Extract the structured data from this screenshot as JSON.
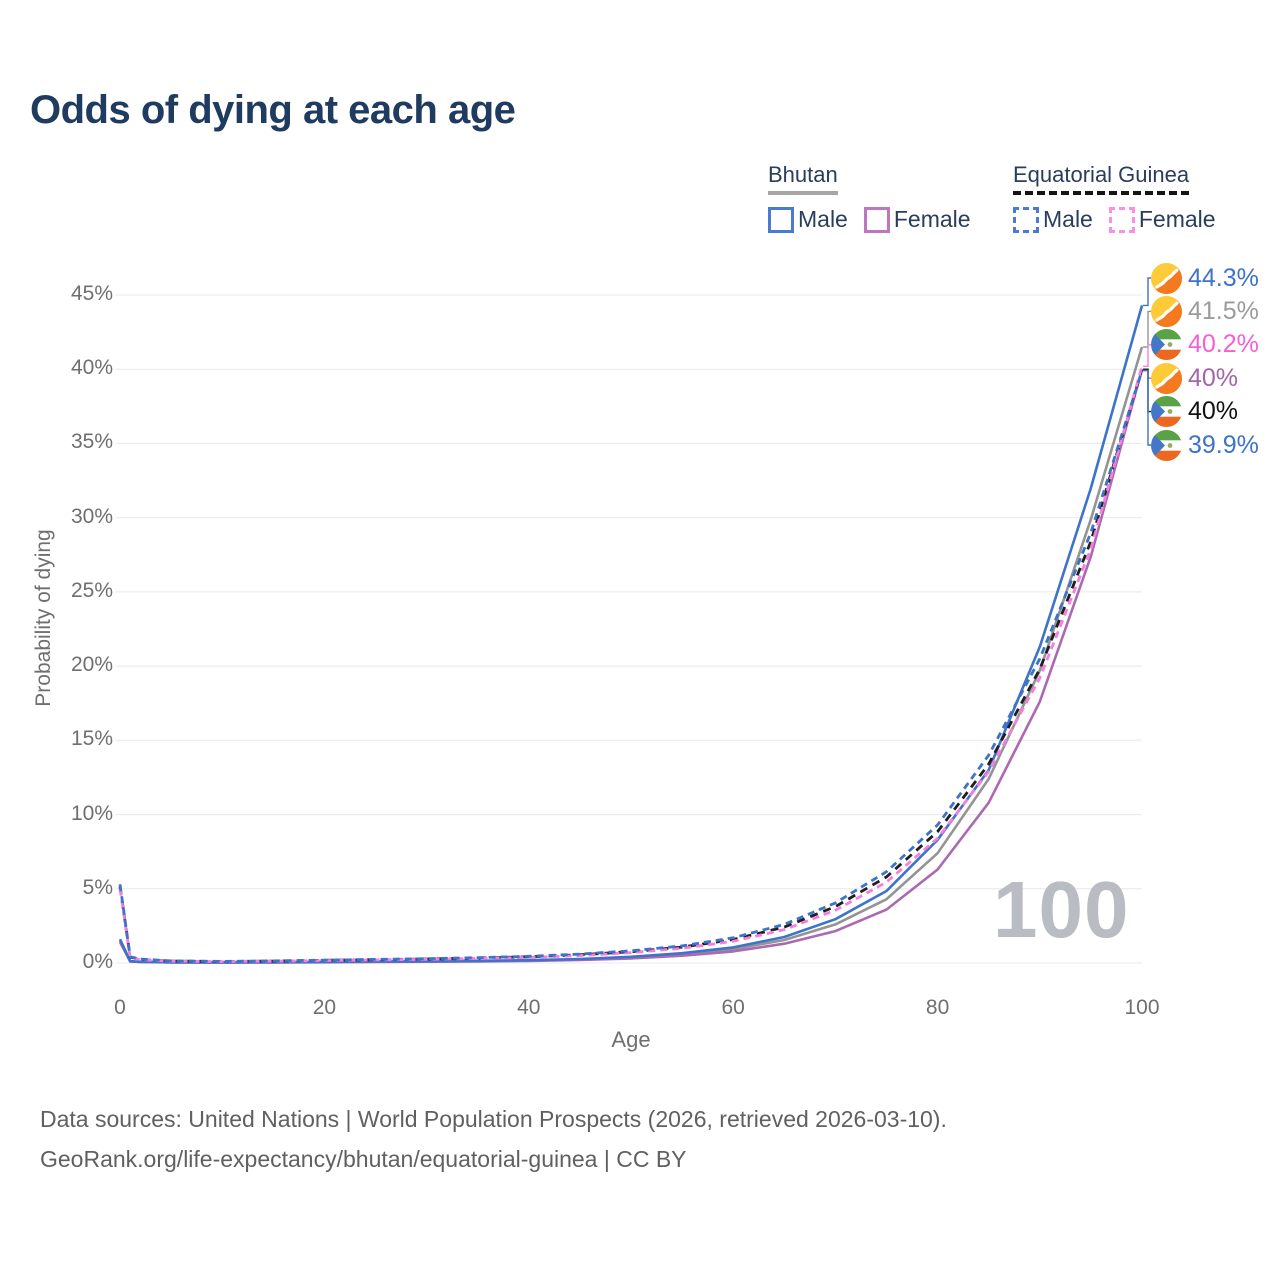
{
  "title": "Odds of dying at each age",
  "watermark": "100",
  "legend": {
    "groups": [
      {
        "name": "Bhutan",
        "underline": "solid",
        "underline_color": "#a6a6a6",
        "items": [
          {
            "label": "Male",
            "color": "#4a7bd1",
            "dashed": false
          },
          {
            "label": "Female",
            "color": "#bd77c0",
            "dashed": false
          }
        ]
      },
      {
        "name": "Equatorial Guinea",
        "underline": "dashed",
        "underline_color": "#141414",
        "items": [
          {
            "label": "Male",
            "color": "#4a7bd1",
            "dashed": true
          },
          {
            "label": "Female",
            "color": "#fb8fe3",
            "dashed": true
          }
        ]
      }
    ]
  },
  "footer": {
    "line1": "Data sources: United Nations | World Population Prospects (2026, retrieved 2026-03-10).",
    "line2": "GeoRank.org/life-expectancy/bhutan/equatorial-guinea | CC BY"
  },
  "chart_data": {
    "type": "line",
    "title": "Odds of dying at each age",
    "xlabel": "Age",
    "ylabel": "Probability of dying",
    "xlim": [
      0,
      100
    ],
    "ylim": [
      0,
      45
    ],
    "x_ticks": [
      0,
      20,
      40,
      60,
      80,
      100
    ],
    "y_ticks": [
      0,
      5,
      10,
      15,
      20,
      25,
      30,
      35,
      40,
      45
    ],
    "y_tick_suffix": "%",
    "grid": "horizontal",
    "legend_position": "top-right",
    "ages": [
      0,
      1,
      2,
      5,
      10,
      15,
      20,
      25,
      30,
      35,
      40,
      45,
      50,
      55,
      60,
      65,
      70,
      75,
      80,
      85,
      90,
      95,
      100
    ],
    "series": [
      {
        "id": "bhutan-total",
        "name": "Bhutan (both sexes)",
        "country": "Bhutan",
        "sex": "both",
        "color": "#949494",
        "dash": null,
        "flag": "bt",
        "end_label": "41.5%",
        "end_label_color": "#9b9b9b",
        "row": 2,
        "values": [
          1.5,
          0.11,
          0.07,
          0.045,
          0.035,
          0.045,
          0.06,
          0.085,
          0.105,
          0.13,
          0.165,
          0.235,
          0.37,
          0.58,
          0.93,
          1.55,
          2.6,
          4.3,
          7.4,
          12.4,
          19.7,
          29.9,
          41.5
        ]
      },
      {
        "id": "bhutan-female",
        "name": "Bhutan Female",
        "country": "Bhutan",
        "sex": "female",
        "color": "#ab69b2",
        "dash": null,
        "flag": "bt",
        "end_label": "40%",
        "end_label_color": "#a365a9",
        "row": 4,
        "values": [
          1.4,
          0.1,
          0.065,
          0.04,
          0.03,
          0.04,
          0.05,
          0.07,
          0.09,
          0.11,
          0.14,
          0.2,
          0.31,
          0.49,
          0.78,
          1.3,
          2.15,
          3.6,
          6.3,
          10.8,
          17.6,
          27.4,
          40.0
        ]
      },
      {
        "id": "bhutan-male",
        "name": "Bhutan Male",
        "country": "Bhutan",
        "sex": "male",
        "color": "#3d73c8",
        "dash": null,
        "flag": "bt",
        "end_label": "44.3%",
        "end_label_color": "#3d73c8",
        "row": 1,
        "values": [
          1.6,
          0.12,
          0.08,
          0.05,
          0.04,
          0.05,
          0.07,
          0.1,
          0.12,
          0.15,
          0.19,
          0.27,
          0.42,
          0.66,
          1.05,
          1.75,
          2.95,
          4.85,
          8.3,
          13.0,
          21.3,
          32.0,
          44.3
        ]
      },
      {
        "id": "eg-total",
        "name": "Equatorial Guinea (both sexes)",
        "country": "Equatorial Guinea",
        "sex": "both",
        "color": "#1f1f1f",
        "dash": "8 6",
        "flag": "gq",
        "end_label": "40%",
        "end_label_color": "#111111",
        "row": 5,
        "values": [
          5.15,
          0.4,
          0.24,
          0.13,
          0.1,
          0.13,
          0.18,
          0.22,
          0.27,
          0.33,
          0.42,
          0.55,
          0.76,
          1.07,
          1.58,
          2.42,
          3.8,
          5.8,
          8.85,
          13.4,
          19.8,
          28.4,
          40.0
        ]
      },
      {
        "id": "eg-female",
        "name": "Equatorial Guinea Female",
        "country": "Equatorial Guinea",
        "sex": "female",
        "color": "#f77de0",
        "dash": "7 5",
        "flag": "gq",
        "end_label": "40.2%",
        "end_label_color": "#f45ed7",
        "row": 3,
        "values": [
          5.0,
          0.38,
          0.23,
          0.12,
          0.095,
          0.12,
          0.165,
          0.21,
          0.25,
          0.3,
          0.38,
          0.5,
          0.7,
          0.99,
          1.46,
          2.25,
          3.55,
          5.45,
          8.4,
          12.9,
          19.2,
          27.9,
          40.2
        ]
      },
      {
        "id": "eg-male",
        "name": "Equatorial Guinea Male",
        "country": "Equatorial Guinea",
        "sex": "male",
        "color": "#3d73c8",
        "dash": "7 5",
        "flag": "gq",
        "end_label": "39.9%",
        "end_label_color": "#3d73c8",
        "row": 6,
        "values": [
          5.3,
          0.42,
          0.26,
          0.14,
          0.11,
          0.14,
          0.19,
          0.24,
          0.29,
          0.36,
          0.45,
          0.6,
          0.82,
          1.15,
          1.7,
          2.6,
          4.05,
          6.15,
          9.3,
          14.0,
          20.5,
          29.0,
          39.9
        ]
      }
    ]
  }
}
